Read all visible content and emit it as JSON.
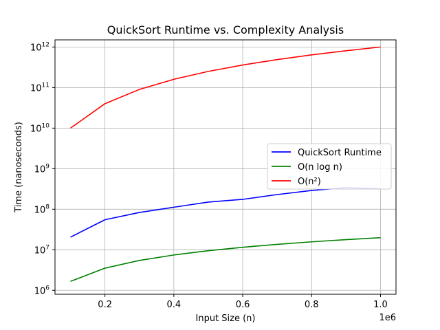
{
  "chart_data": {
    "type": "line",
    "title": "QuickSort Runtime vs. Complexity Analysis",
    "xlabel": "Input Size (n)",
    "ylabel": "Time (nanoseconds)",
    "x_offset_text": "1e6",
    "xlim": [
      55000,
      1045000
    ],
    "ylim": [
      800000,
      1500000000000
    ],
    "yscale": "log",
    "grid": true,
    "legend_position": "center-right",
    "x_ticks": [
      {
        "value": 200000,
        "label": "0.2"
      },
      {
        "value": 400000,
        "label": "0.4"
      },
      {
        "value": 600000,
        "label": "0.6"
      },
      {
        "value": 800000,
        "label": "0.8"
      },
      {
        "value": 1000000,
        "label": "1.0"
      }
    ],
    "y_ticks": [
      {
        "value": 1000000,
        "base": "10",
        "exp": "6"
      },
      {
        "value": 10000000,
        "base": "10",
        "exp": "7"
      },
      {
        "value": 100000000,
        "base": "10",
        "exp": "8"
      },
      {
        "value": 1000000000,
        "base": "10",
        "exp": "9"
      },
      {
        "value": 10000000000,
        "base": "10",
        "exp": "10"
      },
      {
        "value": 100000000000,
        "base": "10",
        "exp": "11"
      },
      {
        "value": 1000000000000,
        "base": "10",
        "exp": "12"
      }
    ],
    "x": [
      100000,
      200000,
      300000,
      400000,
      500000,
      600000,
      700000,
      800000,
      900000,
      1000000
    ],
    "series": [
      {
        "name": "QuickSort Runtime",
        "color": "#0000ff",
        "values": [
          20500000,
          55000000,
          83000000,
          112000000,
          150000000,
          175000000,
          230000000,
          290000000,
          340000000,
          320000000
        ]
      },
      {
        "name": "O(n log n)",
        "color": "#008000",
        "values": [
          1660000,
          3520000,
          5460000,
          7440000,
          9470000,
          11500000,
          13600000,
          15700000,
          17800000,
          19900000
        ]
      },
      {
        "name": "O(n²)",
        "color": "#ff0000",
        "values": [
          10000000000,
          40000000000,
          90000000000,
          160000000000,
          250000000000,
          360000000000,
          490000000000,
          640000000000,
          810000000000,
          1000000000000
        ]
      }
    ]
  }
}
